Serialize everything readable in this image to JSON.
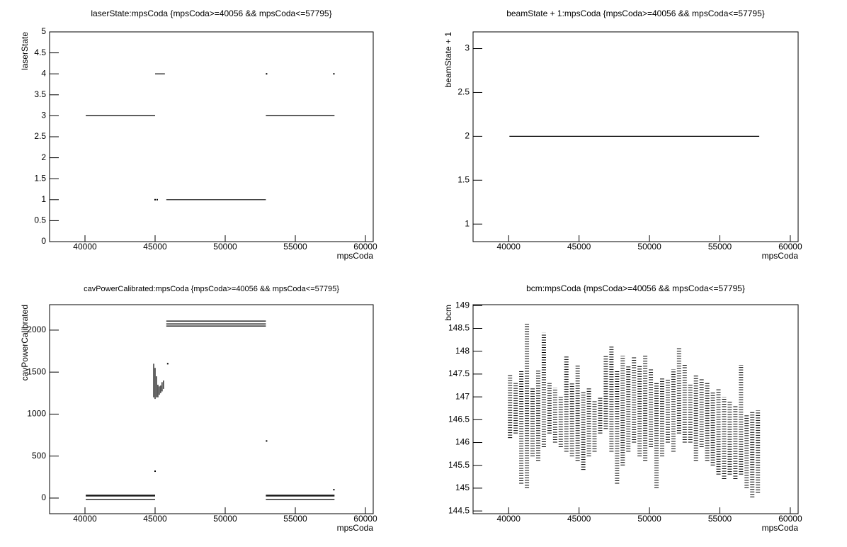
{
  "chart_data": [
    {
      "type": "line",
      "title": "laserState:mpsCoda {mpsCoda>=40056 && mpsCoda<=57795}",
      "xlabel": "mpsCoda",
      "ylabel": "laserState",
      "xlim": [
        37475,
        60556
      ],
      "ylim": [
        0,
        5
      ],
      "xticks": [
        40000,
        45000,
        50000,
        55000,
        60000
      ],
      "yticks": [
        0,
        0.5,
        1,
        1.5,
        2,
        2.5,
        3,
        3.5,
        4,
        4.5,
        5
      ],
      "color": "#000000",
      "x": [
        40056,
        45000,
        null,
        45000,
        45700,
        null,
        45000,
        null,
        45150,
        null,
        45800,
        52900,
        null,
        52900,
        57795,
        null,
        52950,
        null,
        57750
      ],
      "values": [
        3,
        3,
        null,
        4,
        4,
        null,
        1,
        null,
        1,
        null,
        1,
        1,
        null,
        3,
        3,
        null,
        4,
        null,
        4
      ]
    },
    {
      "type": "line",
      "title": "beamState + 1:mpsCoda {mpsCoda>=40056 && mpsCoda<=57795}",
      "xlabel": "mpsCoda",
      "ylabel": "beamState + 1",
      "xlim": [
        37475,
        60556
      ],
      "ylim": [
        0.8,
        3.19
      ],
      "xticks": [
        40000,
        45000,
        50000,
        55000,
        60000
      ],
      "yticks": [
        1,
        1.5,
        2,
        2.5,
        3
      ],
      "color": "#000000",
      "x": [
        40056,
        57795
      ],
      "values": [
        2,
        2
      ]
    },
    {
      "type": "line",
      "title": "cavPowerCalibrated:mpsCoda {mpsCoda>=40056 && mpsCoda<=57795}",
      "xlabel": "mpsCoda",
      "ylabel": "cavPowerCalibrated",
      "xlim": [
        37475,
        60556
      ],
      "ylim": [
        -186,
        2303
      ],
      "xticks": [
        40000,
        45000,
        50000,
        55000,
        60000
      ],
      "yticks": [
        0,
        500,
        1000,
        1500,
        2000
      ],
      "color": "#000000",
      "x": [
        40056,
        45000,
        null,
        40056,
        45000,
        null,
        40056,
        45000,
        null,
        45800,
        52900,
        null,
        45800,
        52900,
        null,
        45800,
        52900,
        null,
        52900,
        57795,
        null,
        52900,
        57795,
        null,
        52900,
        57795,
        null,
        44900,
        44900,
        null,
        45000,
        45000,
        null,
        45100,
        45100,
        null,
        45200,
        45200,
        null,
        45300,
        45300,
        null,
        45400,
        45400,
        null,
        45500,
        45500,
        null,
        45600,
        45600,
        null,
        45000,
        null,
        52950,
        null,
        57750,
        null,
        45900
      ],
      "values": [
        35,
        35,
        null,
        25,
        25,
        null,
        -15,
        -15,
        null,
        2108,
        2108,
        null,
        2074,
        2074,
        null,
        2049,
        2049,
        null,
        35,
        35,
        null,
        25,
        25,
        null,
        -15,
        -15,
        null,
        1200,
        1600,
        null,
        1180,
        1550,
        null,
        1200,
        1450,
        null,
        1200,
        1350,
        null,
        1230,
        1330,
        null,
        1250,
        1340,
        null,
        1270,
        1380,
        null,
        1300,
        1400,
        null,
        320,
        null,
        680,
        null,
        100,
        null,
        1600
      ]
    },
    {
      "type": "range",
      "title": "bcm:mpsCoda {mpsCoda>=40056 && mpsCoda<=57795}",
      "xlabel": "mpsCoda",
      "ylabel": "bcm",
      "xlim": [
        37475,
        60556
      ],
      "ylim": [
        144.44,
        149.02
      ],
      "xticks": [
        40000,
        45000,
        50000,
        55000,
        60000
      ],
      "yticks": [
        144.5,
        145,
        145.5,
        146,
        146.5,
        147,
        147.5,
        148,
        148.5,
        149
      ],
      "color": "#000000",
      "x": [
        40100,
        40500,
        40900,
        41300,
        41700,
        42100,
        42500,
        42900,
        43300,
        43700,
        44100,
        44500,
        44900,
        45300,
        45700,
        46100,
        46500,
        46900,
        47300,
        47700,
        48100,
        48500,
        48900,
        49300,
        49700,
        50100,
        50500,
        50900,
        51300,
        51700,
        52100,
        52500,
        52900,
        53300,
        53700,
        54100,
        54500,
        54900,
        55300,
        55700,
        56100,
        56500,
        56900,
        57300,
        57700
      ],
      "low": [
        146.1,
        146.2,
        145.1,
        145.0,
        145.7,
        145.6,
        145.9,
        146.2,
        146.0,
        145.9,
        145.8,
        145.7,
        145.6,
        145.4,
        145.7,
        145.8,
        146.2,
        146.3,
        145.8,
        145.1,
        145.5,
        145.8,
        146.0,
        145.7,
        145.6,
        145.9,
        145.0,
        145.7,
        146.0,
        145.8,
        146.2,
        146.0,
        146.0,
        145.6,
        145.9,
        145.6,
        145.5,
        145.3,
        145.2,
        145.3,
        145.2,
        145.3,
        145.0,
        144.8,
        144.9
      ],
      "high": [
        147.5,
        147.3,
        147.6,
        148.6,
        147.2,
        147.6,
        148.4,
        147.3,
        147.2,
        147.0,
        147.9,
        147.3,
        147.7,
        147.1,
        147.2,
        146.9,
        147.0,
        147.9,
        148.1,
        147.6,
        147.9,
        147.7,
        147.9,
        147.7,
        147.9,
        147.6,
        147.3,
        147.4,
        147.4,
        147.6,
        148.1,
        147.7,
        147.3,
        147.5,
        147.4,
        147.3,
        147.1,
        147.2,
        147.0,
        146.9,
        146.8,
        147.7,
        146.6,
        146.7,
        146.7
      ]
    }
  ]
}
